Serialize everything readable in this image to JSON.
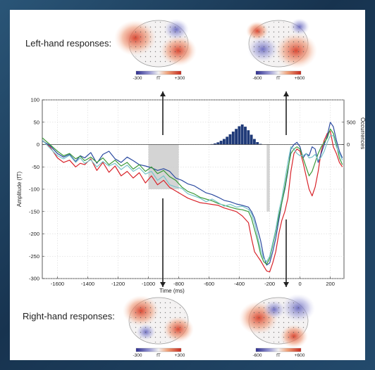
{
  "labels": {
    "left_hand": "Left-hand responses:",
    "right_hand": "Right-hand responses:"
  },
  "colorbars": [
    {
      "name": "topleft",
      "min": "-300",
      "unit": "fT",
      "max": "+300"
    },
    {
      "name": "topright",
      "min": "-600",
      "unit": "fT",
      "max": "+600"
    },
    {
      "name": "bottomleft",
      "min": "-300",
      "unit": "fT",
      "max": "+300"
    },
    {
      "name": "bottomright",
      "min": "-600",
      "unit": "fT",
      "max": "+600"
    }
  ],
  "colors": {
    "neg": "#3c3ca8",
    "pos": "#d43b2a",
    "red": "#d8232a",
    "blue": "#2b4aa0",
    "green": "#3a9a3a",
    "cyan": "#77c4c9",
    "histogram": "#1f3a78",
    "shade": "#c9c9c9",
    "arrow": "#222222"
  },
  "chart_data": {
    "type": "line",
    "xlabel": "Time (ms)",
    "ylabel": "Amplitude (fT)",
    "y2label": "Occurrences",
    "xlim": [
      -1700,
      290
    ],
    "ylim": [
      -300,
      100
    ],
    "xticks": [
      -1600,
      -1400,
      -1200,
      -1000,
      -800,
      -600,
      -400,
      -200,
      0,
      200
    ],
    "yticks": [
      100,
      50,
      0,
      -50,
      -100,
      -150,
      -200,
      -250,
      -300
    ],
    "y2ticks": [
      500,
      0
    ],
    "shaded_windows": [
      {
        "x0": -1000,
        "x1": -800,
        "y0": -100,
        "y1": 0
      },
      {
        "x0": -220,
        "x1": -200,
        "y0": -150,
        "y1": 0
      }
    ],
    "histogram": {
      "x": [
        -580,
        -560,
        -540,
        -520,
        -500,
        -480,
        -460,
        -440,
        -420,
        -400,
        -380,
        -360,
        -340,
        -320,
        -300,
        -280,
        -260
      ],
      "occurrences": [
        10,
        25,
        50,
        85,
        125,
        175,
        230,
        290,
        350,
        410,
        450,
        400,
        320,
        220,
        125,
        55,
        15
      ]
    },
    "series": [
      {
        "color": "red",
        "x": [
          -1700,
          -1650,
          -1600,
          -1560,
          -1520,
          -1480,
          -1450,
          -1420,
          -1380,
          -1340,
          -1300,
          -1260,
          -1220,
          -1180,
          -1140,
          -1100,
          -1060,
          -1020,
          -980,
          -940,
          -900,
          -860,
          -820,
          -780,
          -740,
          -700,
          -660,
          -620,
          -580,
          -540,
          -500,
          -460,
          -420,
          -380,
          -340,
          -320,
          -300,
          -280,
          -260,
          -240,
          -220,
          -200,
          -180,
          -160,
          -140,
          -120,
          -100,
          -80,
          -60,
          -40,
          -20,
          0,
          20,
          40,
          60,
          80,
          100,
          120,
          140,
          160,
          180,
          200,
          220,
          240,
          260,
          280
        ],
        "y": [
          10,
          -5,
          -30,
          -40,
          -35,
          -50,
          -42,
          -45,
          -32,
          -58,
          -40,
          -62,
          -48,
          -70,
          -60,
          -75,
          -63,
          -86,
          -70,
          -90,
          -80,
          -96,
          -104,
          -112,
          -120,
          -125,
          -130,
          -132,
          -134,
          -136,
          -142,
          -146,
          -150,
          -160,
          -175,
          -210,
          -240,
          -250,
          -260,
          -272,
          -283,
          -285,
          -265,
          -240,
          -200,
          -170,
          -150,
          -120,
          -60,
          -20,
          -10,
          -15,
          -40,
          -70,
          -100,
          -115,
          -95,
          -60,
          -15,
          10,
          25,
          30,
          -5,
          -20,
          -40,
          -50
        ]
      },
      {
        "color": "blue",
        "x": [
          -1700,
          -1650,
          -1600,
          -1560,
          -1520,
          -1480,
          -1450,
          -1420,
          -1380,
          -1340,
          -1300,
          -1260,
          -1220,
          -1180,
          -1140,
          -1100,
          -1060,
          -1020,
          -980,
          -940,
          -900,
          -860,
          -820,
          -780,
          -740,
          -700,
          -660,
          -620,
          -580,
          -540,
          -500,
          -460,
          -420,
          -380,
          -340,
          -320,
          -300,
          -280,
          -260,
          -240,
          -220,
          -200,
          -180,
          -160,
          -140,
          -120,
          -100,
          -80,
          -60,
          -40,
          -20,
          0,
          20,
          40,
          60,
          80,
          100,
          120,
          140,
          160,
          180,
          200,
          220,
          240,
          260,
          280
        ],
        "y": [
          8,
          -2,
          -20,
          -28,
          -22,
          -38,
          -25,
          -30,
          -18,
          -42,
          -22,
          -15,
          -32,
          -40,
          -28,
          -36,
          -45,
          -48,
          -52,
          -58,
          -54,
          -60,
          -75,
          -80,
          -88,
          -92,
          -100,
          -108,
          -112,
          -118,
          -125,
          -128,
          -133,
          -136,
          -140,
          -150,
          -165,
          -190,
          -215,
          -250,
          -270,
          -265,
          -240,
          -210,
          -170,
          -130,
          -100,
          -60,
          -10,
          0,
          5,
          -5,
          -30,
          -20,
          -25,
          -5,
          -10,
          -40,
          -20,
          0,
          20,
          50,
          40,
          10,
          -15,
          -30
        ]
      },
      {
        "color": "green",
        "x": [
          -1700,
          -1650,
          -1600,
          -1560,
          -1520,
          -1480,
          -1450,
          -1420,
          -1380,
          -1340,
          -1300,
          -1260,
          -1220,
          -1180,
          -1140,
          -1100,
          -1060,
          -1020,
          -980,
          -940,
          -900,
          -860,
          -820,
          -780,
          -740,
          -700,
          -660,
          -620,
          -580,
          -540,
          -500,
          -460,
          -420,
          -380,
          -340,
          -320,
          -300,
          -280,
          -260,
          -240,
          -220,
          -200,
          -180,
          -160,
          -140,
          -120,
          -100,
          -80,
          -60,
          -40,
          -20,
          0,
          20,
          40,
          60,
          80,
          100,
          120,
          140,
          160,
          180,
          200,
          220,
          240,
          260,
          280
        ],
        "y": [
          15,
          0,
          -15,
          -25,
          -20,
          -32,
          -26,
          -36,
          -28,
          -40,
          -30,
          -45,
          -35,
          -48,
          -40,
          -55,
          -45,
          -60,
          -50,
          -65,
          -58,
          -72,
          -80,
          -95,
          -105,
          -110,
          -118,
          -122,
          -126,
          -132,
          -136,
          -140,
          -144,
          -146,
          -150,
          -165,
          -190,
          -215,
          -245,
          -262,
          -268,
          -255,
          -225,
          -195,
          -160,
          -130,
          -95,
          -55,
          -20,
          -10,
          -5,
          -10,
          -30,
          -50,
          -70,
          -60,
          -40,
          -20,
          -5,
          5,
          15,
          35,
          25,
          0,
          -30,
          -45
        ]
      },
      {
        "color": "cyan",
        "x": [
          -1700,
          -1650,
          -1600,
          -1560,
          -1520,
          -1480,
          -1450,
          -1420,
          -1380,
          -1340,
          -1300,
          -1260,
          -1220,
          -1180,
          -1140,
          -1100,
          -1060,
          -1020,
          -980,
          -940,
          -900,
          -860,
          -820,
          -780,
          -740,
          -700,
          -660,
          -620,
          -580,
          -540,
          -500,
          -460,
          -420,
          -380,
          -340,
          -320,
          -300,
          -280,
          -260,
          -240,
          -220,
          -200,
          -180,
          -160,
          -140,
          -120,
          -100,
          -80,
          -60,
          -40,
          -20,
          0,
          20,
          40,
          60,
          80,
          100,
          120,
          140,
          160,
          180,
          200,
          220,
          240,
          260,
          280
        ],
        "y": [
          10,
          -8,
          -25,
          -32,
          -24,
          -40,
          -30,
          -42,
          -34,
          -50,
          -38,
          -48,
          -42,
          -56,
          -46,
          -60,
          -52,
          -66,
          -60,
          -80,
          -70,
          -90,
          -95,
          -98,
          -110,
          -115,
          -120,
          -128,
          -122,
          -130,
          -138,
          -134,
          -140,
          -138,
          -145,
          -155,
          -175,
          -205,
          -235,
          -255,
          -262,
          -250,
          -220,
          -190,
          -150,
          -120,
          -80,
          -40,
          -5,
          -10,
          -20,
          -25,
          -25,
          -20,
          -30,
          -28,
          -22,
          -35,
          -28,
          -15,
          5,
          20,
          20,
          -5,
          -20,
          -35
        ]
      }
    ]
  }
}
